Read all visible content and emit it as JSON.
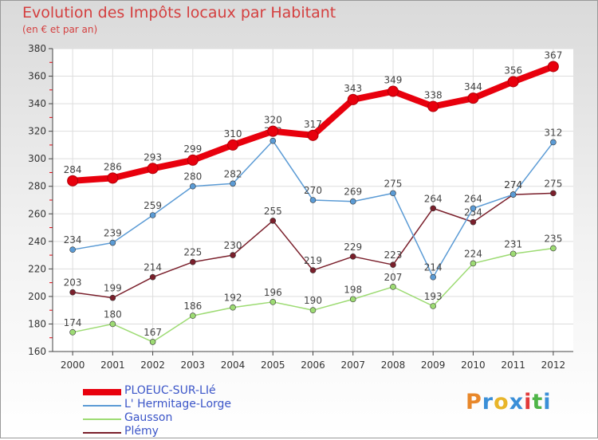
{
  "header": {
    "title": "Evolution des Impôts locaux par Habitant",
    "subtitle": "(en € et par an)"
  },
  "logo": {
    "text": "Proxiti",
    "colors": [
      "#e8872a",
      "#3a8fd8",
      "#e8b52a",
      "#3a8fd8",
      "#e23a3a",
      "#4fb548",
      "#3a8fd8"
    ]
  },
  "chart_data": {
    "type": "line",
    "title": "Evolution des Impôts locaux par Habitant",
    "subtitle": "(en € et par an)",
    "xlabel": "",
    "ylabel": "",
    "x": [
      2000,
      2001,
      2002,
      2003,
      2004,
      2005,
      2006,
      2007,
      2008,
      2009,
      2010,
      2011,
      2012
    ],
    "ylim": [
      160,
      380
    ],
    "yticks": [
      160,
      180,
      200,
      220,
      240,
      260,
      280,
      300,
      320,
      340,
      360,
      380
    ],
    "grid": true,
    "legend_position": "bottom-left",
    "series": [
      {
        "name": "PLOEUC-SUR-LIé",
        "color": "#e8000d",
        "values": [
          284,
          286,
          293,
          299,
          310,
          320,
          317,
          343,
          349,
          338,
          344,
          356,
          367
        ]
      },
      {
        "name": "L' Hermitage-Lorge",
        "color": "#5b9bd5",
        "values": [
          234,
          239,
          259,
          280,
          282,
          313,
          270,
          269,
          275,
          214,
          264,
          274,
          312
        ]
      },
      {
        "name": "Gausson",
        "color": "#9ddb73",
        "values": [
          174,
          180,
          167,
          186,
          192,
          196,
          190,
          198,
          207,
          193,
          224,
          231,
          235
        ]
      },
      {
        "name": "Plémy",
        "color": "#7a1f2b",
        "values": [
          203,
          199,
          214,
          225,
          230,
          255,
          219,
          229,
          223,
          264,
          254,
          274,
          275
        ]
      }
    ]
  }
}
